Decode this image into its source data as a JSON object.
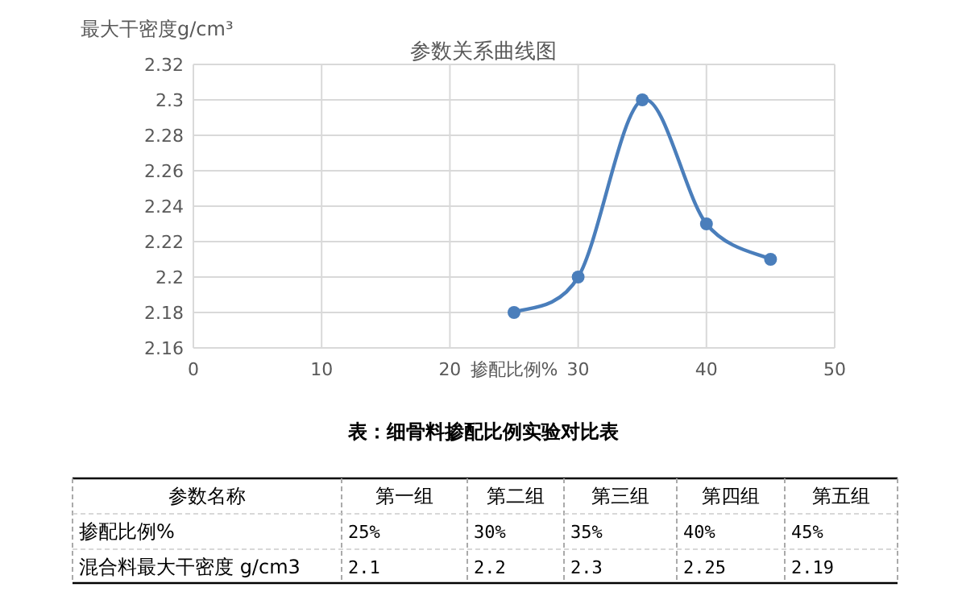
{
  "chart_data": [
    {
      "type": "line",
      "title": "参数关系曲线图",
      "xlabel": "掺配比例%",
      "ylabel": "最大干密度g/cm³",
      "x": [
        25,
        30,
        35,
        40,
        45
      ],
      "series": [
        {
          "color": "#4a7ebb",
          "values": [
            2.18,
            2.2,
            2.3,
            2.23,
            2.21
          ]
        }
      ],
      "xlim": [
        0,
        50
      ],
      "xticks": [
        0,
        10,
        20,
        30,
        40,
        50
      ],
      "ylim": [
        2.16,
        2.32
      ],
      "yticks": [
        2.16,
        2.18,
        2.2,
        2.22,
        2.24,
        2.26,
        2.28,
        2.3,
        2.32
      ],
      "grid": true,
      "marker": "circle",
      "line_style": "solid"
    },
    {
      "type": "other",
      "title": "表：细骨料掺配比例实验对比表",
      "xlabel": "参数名称",
      "categories": [
        "第一组",
        "第二组",
        "第三组",
        "第四组",
        "第五组"
      ],
      "series": [
        {
          "name": "掺配比例%",
          "values": [
            25,
            30,
            35,
            40,
            45
          ],
          "value_labels": [
            "25%",
            "30%",
            "35%",
            "40%",
            "45%"
          ]
        },
        {
          "name": "混合料最大干密度 g/cm3",
          "values": [
            2.1,
            2.2,
            2.3,
            2.25,
            2.19
          ],
          "value_labels": [
            "2.1",
            "2.2",
            "2.3",
            "2.25",
            "2.19"
          ]
        }
      ]
    }
  ]
}
